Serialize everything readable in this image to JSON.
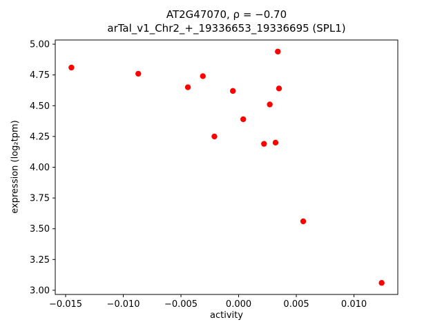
{
  "chart_data": {
    "type": "scatter",
    "title_line1": "AT2G47070, ρ = −0.70",
    "title_line2": "arTal_v1_Chr2_+_19336653_19336695 (SPL1)",
    "xlabel": "activity",
    "ylabel": "expression (log₂tpm)",
    "xlim": [
      -0.0159,
      0.0138
    ],
    "ylim": [
      2.966,
      5.034
    ],
    "xticks": [
      -0.015,
      -0.01,
      -0.005,
      0.0,
      0.005,
      0.01
    ],
    "xtick_labels": [
      "−0.015",
      "−0.010",
      "−0.005",
      "0.000",
      "0.005",
      "0.010"
    ],
    "yticks": [
      3.0,
      3.25,
      3.5,
      3.75,
      4.0,
      4.25,
      4.5,
      4.75,
      5.0
    ],
    "ytick_labels": [
      "3.00",
      "3.25",
      "3.50",
      "3.75",
      "4.00",
      "4.25",
      "4.50",
      "4.75",
      "5.00"
    ],
    "grid": false,
    "legend": "none",
    "marker_color": "#ff0000",
    "axis_color": "#000000",
    "points": [
      [
        -0.0145,
        4.81
      ],
      [
        -0.0087,
        4.76
      ],
      [
        -0.0044,
        4.65
      ],
      [
        -0.0031,
        4.74
      ],
      [
        -0.0021,
        4.25
      ],
      [
        -0.0005,
        4.62
      ],
      [
        0.0004,
        4.39
      ],
      [
        0.0022,
        4.19
      ],
      [
        0.0027,
        4.51
      ],
      [
        0.0032,
        4.2
      ],
      [
        0.0034,
        4.94
      ],
      [
        0.0035,
        4.64
      ],
      [
        0.0056,
        3.56
      ],
      [
        0.0124,
        3.06
      ]
    ]
  }
}
